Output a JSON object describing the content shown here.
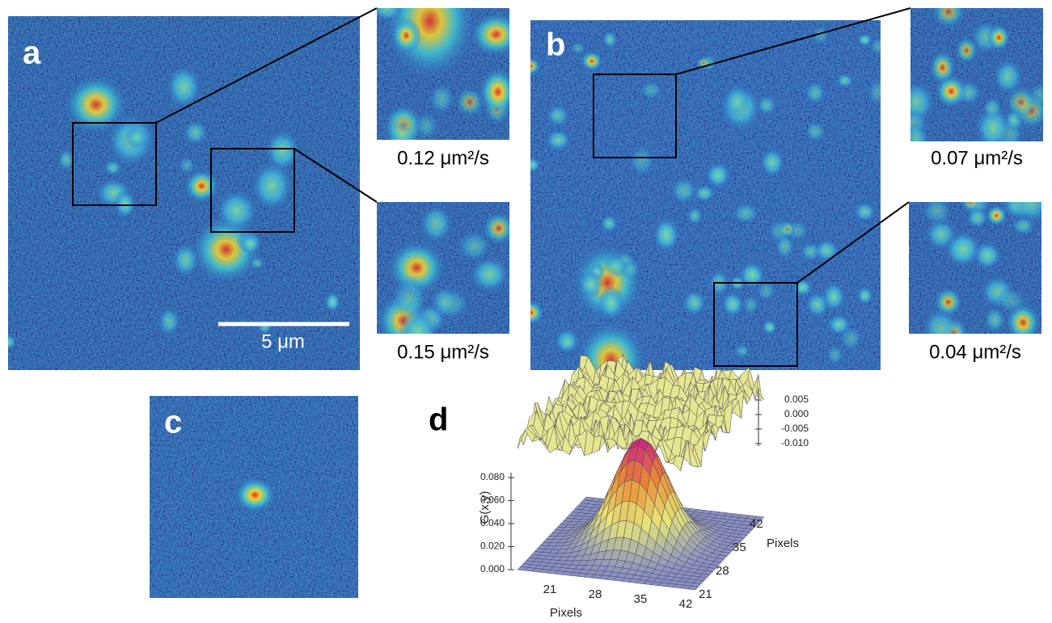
{
  "panels": {
    "a": {
      "label": "a",
      "scale_bar": "5 μm",
      "insets": [
        "0.12 μm²/s",
        "0.15 μm²/s"
      ]
    },
    "b": {
      "label": "b",
      "insets": [
        "0.07 μm²/s",
        "0.04 μm²/s"
      ]
    },
    "c": {
      "label": "c"
    },
    "d": {
      "label": "d",
      "z_axis_label": "G(x,y)",
      "z_ticks": [
        "0.080",
        "0.060",
        "0.040",
        "0.020",
        "0.000"
      ],
      "x_axis_label": "Pixels",
      "x_ticks": [
        "21",
        "28",
        "35",
        "42"
      ],
      "y_axis_label": "Pixels",
      "y_ticks": [
        "21",
        "28",
        "35",
        "42"
      ],
      "residual_ticks": [
        "0.005",
        "0.000",
        "-0.005",
        "-0.010"
      ]
    }
  }
}
